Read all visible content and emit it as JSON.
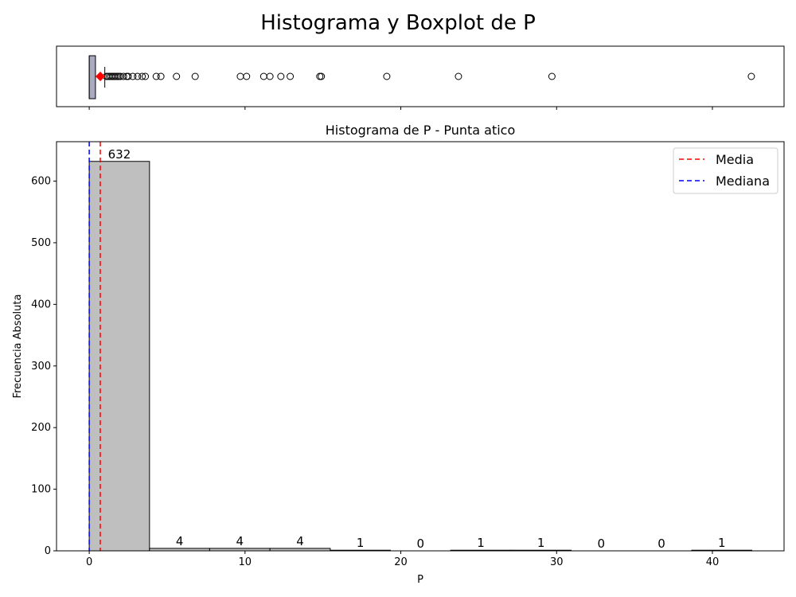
{
  "suptitle": "Histograma y Boxplot de P",
  "chart_data": [
    {
      "type": "box",
      "variable": "P",
      "xlim": [
        -2.1,
        44.6
      ],
      "box": {
        "whisker_low": 0.0,
        "q1": 0.0,
        "median": 0.0,
        "q3": 0.4,
        "whisker_high": 1.0,
        "mean": 0.71
      },
      "outliers": [
        1.1,
        1.2,
        1.3,
        1.4,
        1.5,
        1.6,
        1.7,
        1.8,
        1.9,
        2.0,
        2.2,
        2.4,
        2.5,
        2.8,
        3.1,
        3.4,
        3.6,
        4.3,
        4.6,
        5.6,
        6.8,
        9.7,
        10.1,
        11.2,
        11.6,
        12.3,
        12.9,
        14.8,
        14.9,
        19.1,
        23.7,
        29.7,
        42.5
      ],
      "grid": false
    },
    {
      "type": "histogram",
      "title": "Histograma de P - Punta atico",
      "xlabel": "P",
      "ylabel": "Frecuencia Absoluta",
      "xlim": [
        -2.1,
        44.6
      ],
      "ylim": [
        0,
        664
      ],
      "xticks": [
        0,
        10,
        20,
        30,
        40
      ],
      "yticks": [
        0,
        100,
        200,
        300,
        400,
        500,
        600
      ],
      "bin_edges": [
        0,
        3.87,
        7.73,
        11.6,
        15.47,
        19.33,
        23.2,
        27.07,
        30.93,
        34.8,
        38.67,
        42.53
      ],
      "counts": [
        632,
        4,
        4,
        4,
        1,
        0,
        1,
        1,
        0,
        0,
        1
      ],
      "bar_labels": [
        "632",
        "4",
        "4",
        "4",
        "1",
        "0",
        "1",
        "1",
        "0",
        "0",
        "1"
      ],
      "mean": 0.71,
      "median": 0.0,
      "legend": {
        "position": "upper right",
        "entries": [
          {
            "label": "Media",
            "color": "#ff0000"
          },
          {
            "label": "Mediana",
            "color": "#0000ff"
          }
        ]
      },
      "bar_color": "#bfbfbf",
      "grid": false
    }
  ]
}
